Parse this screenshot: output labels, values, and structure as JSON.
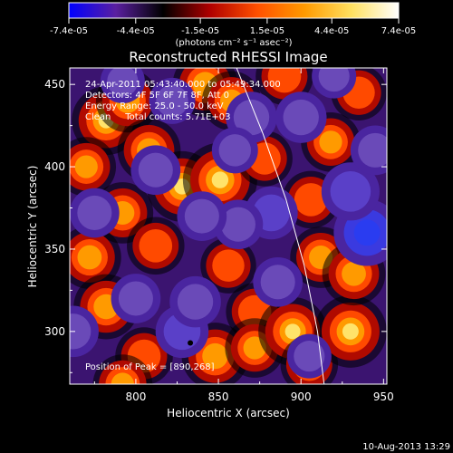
{
  "chart_data": {
    "type": "heatmap",
    "colorbar": {
      "colors": [
        "#0000ff",
        "#5a1fa0",
        "#000000",
        "#b00000",
        "#ff5000",
        "#ff9a00",
        "#ffe060",
        "#ffffff"
      ],
      "tick_labels": [
        "-7.4e-05",
        "-4.4e-05",
        "-1.5e-05",
        "1.5e-05",
        "4.4e-05",
        "7.4e-05"
      ],
      "range": [
        -7.4e-05,
        7.4e-05
      ]
    },
    "unit_label": "(photons cm⁻² s⁻¹ asec⁻²)",
    "title": "Reconstructed RHESSI Image",
    "annotations": [
      "24-Apr-2011 05:43:40.000 to 05:49:34.000",
      "Detectors: 4F 5F 6F 7F 8F, Att 0",
      "Energy Range: 25.0 - 50.0 keV",
      "Clean     Total counts: 5.71E+03"
    ],
    "peak_label": "Position of Peak = [890,268]",
    "peak": [
      890,
      268
    ],
    "xlabel": "Heliocentric X (arcsec)",
    "ylabel": "Heliocentric Y (arcsec)",
    "xlim": [
      760,
      952
    ],
    "ylim": [
      268,
      460
    ],
    "x_ticks": [
      800,
      850,
      900,
      950
    ],
    "y_ticks": [
      300,
      350,
      400,
      450
    ],
    "limb": [
      [
        861,
        460
      ],
      [
        877,
        420
      ],
      [
        891,
        380
      ],
      [
        902,
        340
      ],
      [
        910,
        300
      ],
      [
        914,
        268
      ]
    ],
    "blobs": [
      {
        "x": 782,
        "y": 428,
        "v": 0.85
      },
      {
        "x": 795,
        "y": 440,
        "v": 0.7
      },
      {
        "x": 842,
        "y": 450,
        "v": 0.75
      },
      {
        "x": 858,
        "y": 440,
        "v": 0.6
      },
      {
        "x": 808,
        "y": 410,
        "v": 0.7
      },
      {
        "x": 828,
        "y": 388,
        "v": 0.9
      },
      {
        "x": 851,
        "y": 392,
        "v": 1.0
      },
      {
        "x": 770,
        "y": 400,
        "v": 0.6
      },
      {
        "x": 792,
        "y": 372,
        "v": 0.65
      },
      {
        "x": 812,
        "y": 352,
        "v": 0.55
      },
      {
        "x": 772,
        "y": 345,
        "v": 0.7
      },
      {
        "x": 782,
        "y": 315,
        "v": 0.75
      },
      {
        "x": 805,
        "y": 285,
        "v": 0.55
      },
      {
        "x": 856,
        "y": 340,
        "v": 0.5
      },
      {
        "x": 872,
        "y": 312,
        "v": 0.55
      },
      {
        "x": 848,
        "y": 285,
        "v": 0.8
      },
      {
        "x": 872,
        "y": 290,
        "v": 0.6
      },
      {
        "x": 895,
        "y": 300,
        "v": 0.85
      },
      {
        "x": 905,
        "y": 280,
        "v": 0.55
      },
      {
        "x": 930,
        "y": 300,
        "v": 0.95
      },
      {
        "x": 912,
        "y": 345,
        "v": 0.65
      },
      {
        "x": 932,
        "y": 335,
        "v": 0.7
      },
      {
        "x": 906,
        "y": 380,
        "v": 0.55
      },
      {
        "x": 918,
        "y": 415,
        "v": 0.6
      },
      {
        "x": 935,
        "y": 445,
        "v": 0.5
      },
      {
        "x": 890,
        "y": 455,
        "v": 0.55
      },
      {
        "x": 878,
        "y": 405,
        "v": 0.5
      },
      {
        "x": 792,
        "y": 268,
        "v": 0.6
      },
      {
        "x": 828,
        "y": 300,
        "v": -0.55
      },
      {
        "x": 836,
        "y": 318,
        "v": -0.5
      },
      {
        "x": 940,
        "y": 360,
        "v": -0.95
      },
      {
        "x": 930,
        "y": 385,
        "v": -0.7
      },
      {
        "x": 882,
        "y": 372,
        "v": -0.55
      },
      {
        "x": 870,
        "y": 430,
        "v": -0.5
      },
      {
        "x": 900,
        "y": 430,
        "v": -0.5
      },
      {
        "x": 800,
        "y": 320,
        "v": -0.45
      },
      {
        "x": 812,
        "y": 398,
        "v": -0.45
      },
      {
        "x": 862,
        "y": 365,
        "v": -0.45
      },
      {
        "x": 775,
        "y": 372,
        "v": -0.45
      },
      {
        "x": 822,
        "y": 440,
        "v": -0.35
      },
      {
        "x": 792,
        "y": 452,
        "v": -0.3
      },
      {
        "x": 886,
        "y": 330,
        "v": -0.45
      },
      {
        "x": 905,
        "y": 285,
        "v": -0.3
      },
      {
        "x": 762,
        "y": 300,
        "v": -0.5
      },
      {
        "x": 945,
        "y": 410,
        "v": -0.45
      },
      {
        "x": 920,
        "y": 455,
        "v": -0.3
      },
      {
        "x": 840,
        "y": 370,
        "v": -0.45
      },
      {
        "x": 860,
        "y": 410,
        "v": -0.35
      }
    ]
  },
  "footer": {
    "timestamp": "10-Aug-2013 13:29"
  }
}
